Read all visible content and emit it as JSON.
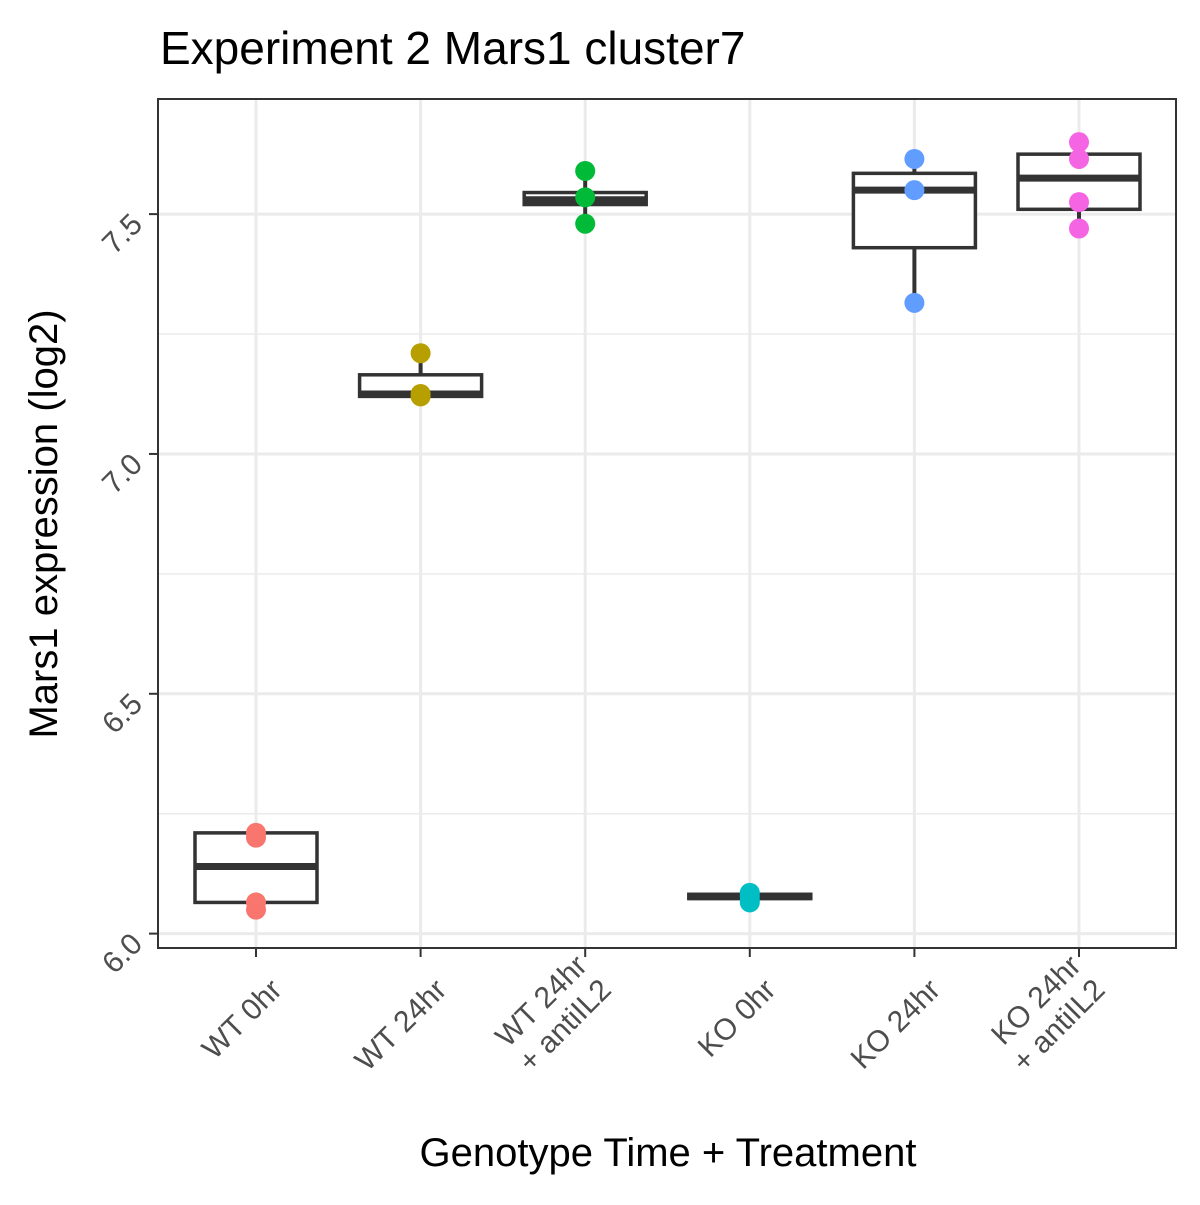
{
  "chart_data": {
    "type": "box",
    "title": "Experiment 2 Mars1 cluster7",
    "xlabel": "Genotype Time + Treatment",
    "ylabel": "Mars1 expression (log2)",
    "ylim": [
      5.97,
      7.74
    ],
    "y_major_ticks": [
      6.0,
      6.5,
      7.0,
      7.5
    ],
    "y_tick_labels": [
      "6.0",
      "6.5",
      "7.0",
      "7.5"
    ],
    "y_minor_ticks": [
      6.25,
      6.75,
      7.25
    ],
    "grid": true,
    "legend": "none",
    "categories": [
      {
        "label_lines": [
          "WT 0hr"
        ],
        "color": "#F8766D",
        "box": {
          "q1": 6.065,
          "median": 6.14,
          "q3": 6.21,
          "whisker_low": 6.05,
          "whisker_high": 6.215
        },
        "points": [
          6.21,
          6.2,
          6.065,
          6.05
        ]
      },
      {
        "label_lines": [
          "WT 24hr"
        ],
        "color": "#B79F00",
        "box": {
          "q1": 7.12,
          "median": 7.125,
          "q3": 7.165,
          "whisker_low": 7.12,
          "whisker_high": 7.21
        },
        "points": [
          7.21,
          7.125,
          7.12
        ]
      },
      {
        "label_lines": [
          "WT 24hr",
          "+ antiIL2"
        ],
        "color": "#00BA38",
        "box": {
          "q1": 7.52,
          "median": 7.53,
          "q3": 7.545,
          "whisker_low": 7.48,
          "whisker_high": 7.59
        },
        "points": [
          7.59,
          7.535,
          7.48
        ]
      },
      {
        "label_lines": [
          "KO 0hr"
        ],
        "color": "#00BFC4",
        "box": {
          "q1": 6.073,
          "median": 6.077,
          "q3": 6.082,
          "whisker_low": 6.065,
          "whisker_high": 6.085
        },
        "points": [
          6.085,
          6.078,
          6.07,
          6.065
        ]
      },
      {
        "label_lines": [
          "KO 24hr"
        ],
        "color": "#619CFF",
        "box": {
          "q1": 7.43,
          "median": 7.55,
          "q3": 7.585,
          "whisker_low": 7.315,
          "whisker_high": 7.615
        },
        "points": [
          7.615,
          7.55,
          7.315
        ]
      },
      {
        "label_lines": [
          "KO 24hr",
          "+ antiIL2"
        ],
        "color": "#F564E3",
        "box": {
          "q1": 7.51,
          "median": 7.575,
          "q3": 7.625,
          "whisker_low": 7.47,
          "whisker_high": 7.65
        },
        "points": [
          7.65,
          7.615,
          7.525,
          7.47
        ]
      }
    ]
  }
}
